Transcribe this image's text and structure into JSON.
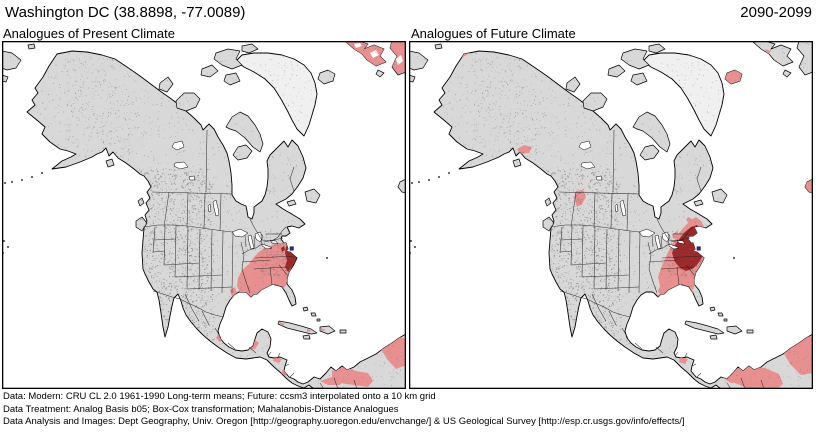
{
  "header": {
    "title": "Washington DC  (38.8898, -77.0089)",
    "city": "Washington DC",
    "latitude": "38.8898",
    "longitude": "-77.0089",
    "period": "2090-2099"
  },
  "panels": [
    {
      "id": "present",
      "label": "Analogues of Present Climate"
    },
    {
      "id": "future",
      "label": "Analogues of Future Climate"
    }
  ],
  "footer": {
    "line1": "Data:  Modern: CRU CL 2.0 1961-1990 Long-term means; Future: ccsm3 interpolated onto a 10 km grid",
    "line2": "Data Treatment:  Analog Basis b05; Box-Cox transformation; Mahalanobis-Distance Analogues",
    "line3": "Data Analysis and Images:  Dept Geography, Univ. Oregon [http://geography.uoregon.edu/envchange/] & US Geological Survey [http://esp.cr.usgs.gov/info/effects/]"
  },
  "colors": {
    "ocean": "#ffffff",
    "land": "#d8d8d8",
    "ice": "#f0f0f0",
    "coast": "#000000",
    "analog_pink": "#e88f8f",
    "analog_dark": "#9e2828",
    "marker_blue": "#2424cc"
  }
}
